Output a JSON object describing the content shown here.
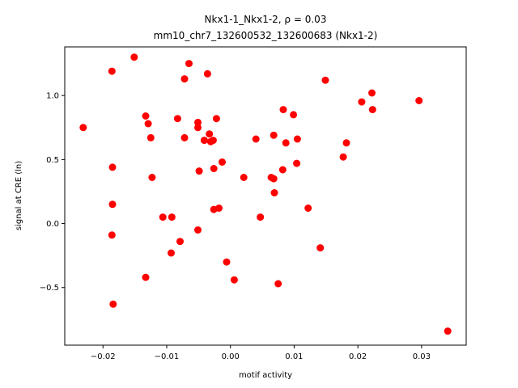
{
  "chart_data": {
    "type": "scatter",
    "title": "Nkx1-1_Nkx1-2, ρ = 0.03",
    "subtitle": "mm10_chr7_132600532_132600683 (Nkx1-2)",
    "xlabel": "motif activity",
    "ylabel": "signal at CRE (ln)",
    "xlim": [
      -0.026,
      0.037
    ],
    "ylim": [
      -0.95,
      1.38
    ],
    "xticks": [
      -0.02,
      -0.01,
      0.0,
      0.01,
      0.02,
      0.03
    ],
    "xtick_labels": [
      "−0.02",
      "−0.01",
      "0.00",
      "0.01",
      "0.02",
      "0.03"
    ],
    "yticks": [
      -0.5,
      0.0,
      0.5,
      1.0
    ],
    "ytick_labels": [
      "−0.5",
      "0.0",
      "0.5",
      "1.0"
    ],
    "grid": false,
    "marker_color": "#ff0000",
    "points": [
      {
        "x": -0.0231,
        "y": 0.75
      },
      {
        "x": -0.0186,
        "y": 1.19
      },
      {
        "x": -0.0185,
        "y": 0.44
      },
      {
        "x": -0.0185,
        "y": 0.15
      },
      {
        "x": -0.0186,
        "y": -0.09
      },
      {
        "x": -0.0184,
        "y": -0.63
      },
      {
        "x": -0.0151,
        "y": 1.3
      },
      {
        "x": -0.0133,
        "y": 0.84
      },
      {
        "x": -0.0129,
        "y": 0.78
      },
      {
        "x": -0.0125,
        "y": 0.67
      },
      {
        "x": -0.0123,
        "y": 0.36
      },
      {
        "x": -0.0133,
        "y": -0.42
      },
      {
        "x": -0.0106,
        "y": 0.05
      },
      {
        "x": -0.0092,
        "y": 0.05
      },
      {
        "x": -0.0093,
        "y": -0.23
      },
      {
        "x": -0.0083,
        "y": 0.82
      },
      {
        "x": -0.0079,
        "y": -0.14
      },
      {
        "x": -0.0072,
        "y": 1.13
      },
      {
        "x": -0.0072,
        "y": 0.67
      },
      {
        "x": -0.0065,
        "y": 1.25
      },
      {
        "x": -0.0051,
        "y": 0.79
      },
      {
        "x": -0.0051,
        "y": 0.75
      },
      {
        "x": -0.0049,
        "y": 0.41
      },
      {
        "x": -0.0051,
        "y": -0.05
      },
      {
        "x": -0.0041,
        "y": 0.65
      },
      {
        "x": -0.0036,
        "y": 1.17
      },
      {
        "x": -0.0033,
        "y": 0.7
      },
      {
        "x": -0.0031,
        "y": 0.64
      },
      {
        "x": -0.0027,
        "y": 0.65
      },
      {
        "x": -0.0026,
        "y": 0.43
      },
      {
        "x": -0.0026,
        "y": 0.11
      },
      {
        "x": -0.0022,
        "y": 0.82
      },
      {
        "x": -0.0018,
        "y": 0.12
      },
      {
        "x": -0.0013,
        "y": 0.48
      },
      {
        "x": -0.0006,
        "y": -0.3
      },
      {
        "x": 0.0006,
        "y": -0.44
      },
      {
        "x": 0.0021,
        "y": 0.36
      },
      {
        "x": 0.004,
        "y": 0.66
      },
      {
        "x": 0.0047,
        "y": 0.05
      },
      {
        "x": 0.0064,
        "y": 0.36
      },
      {
        "x": 0.0068,
        "y": 0.69
      },
      {
        "x": 0.0068,
        "y": 0.35
      },
      {
        "x": 0.0069,
        "y": 0.24
      },
      {
        "x": 0.0075,
        "y": -0.47
      },
      {
        "x": 0.0082,
        "y": 0.42
      },
      {
        "x": 0.0083,
        "y": 0.89
      },
      {
        "x": 0.0087,
        "y": 0.63
      },
      {
        "x": 0.0099,
        "y": 0.85
      },
      {
        "x": 0.0104,
        "y": 0.47
      },
      {
        "x": 0.0105,
        "y": 0.66
      },
      {
        "x": 0.0122,
        "y": 0.12
      },
      {
        "x": 0.0141,
        "y": -0.19
      },
      {
        "x": 0.0149,
        "y": 1.12
      },
      {
        "x": 0.0177,
        "y": 0.52
      },
      {
        "x": 0.0182,
        "y": 0.63
      },
      {
        "x": 0.0206,
        "y": 0.95
      },
      {
        "x": 0.0222,
        "y": 1.02
      },
      {
        "x": 0.0223,
        "y": 0.89
      },
      {
        "x": 0.0296,
        "y": 0.96
      },
      {
        "x": 0.0341,
        "y": -0.84
      }
    ]
  }
}
